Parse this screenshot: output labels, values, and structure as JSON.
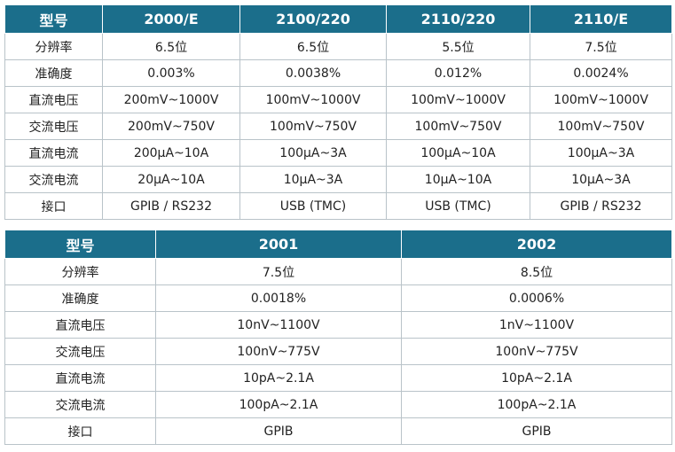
{
  "tables": [
    {
      "header": [
        "型号",
        "2000/E",
        "2100/220",
        "2110/220",
        "2110/E"
      ],
      "rows": [
        [
          "分辨率",
          "6.5位",
          "6.5位",
          "5.5位",
          "7.5位"
        ],
        [
          "准确度",
          "0.003%",
          "0.0038%",
          "0.012%",
          "0.0024%"
        ],
        [
          "直流电压",
          "200mV~1000V",
          "100mV~1000V",
          "100mV~1000V",
          "100mV~1000V"
        ],
        [
          "交流电压",
          "200mV~750V",
          "100mV~750V",
          "100mV~750V",
          "100mV~750V"
        ],
        [
          "直流电流",
          "200μA~10A",
          "100μA~3A",
          "100μA~10A",
          "100μA~3A"
        ],
        [
          "交流电流",
          "20μA~10A",
          "10μA~3A",
          "10μA~10A",
          "10μA~3A"
        ],
        [
          "接口",
          "GPIB / RS232",
          "USB (TMC)",
          "USB (TMC)",
          "GPIB / RS232"
        ]
      ]
    },
    {
      "header": [
        "型号",
        "2001",
        "2002"
      ],
      "rows": [
        [
          "分辨率",
          "7.5位",
          "8.5位"
        ],
        [
          "准确度",
          "0.0018%",
          "0.0006%"
        ],
        [
          "直流电压",
          "10nV~1100V",
          "1nV~1100V"
        ],
        [
          "交流电压",
          "100nV~775V",
          "100nV~775V"
        ],
        [
          "直流电流",
          "10pA~2.1A",
          "10pA~2.1A"
        ],
        [
          "交流电流",
          "100pA~2.1A",
          "100pA~2.1A"
        ],
        [
          "接口",
          "GPIB",
          "GPIB"
        ]
      ]
    }
  ]
}
